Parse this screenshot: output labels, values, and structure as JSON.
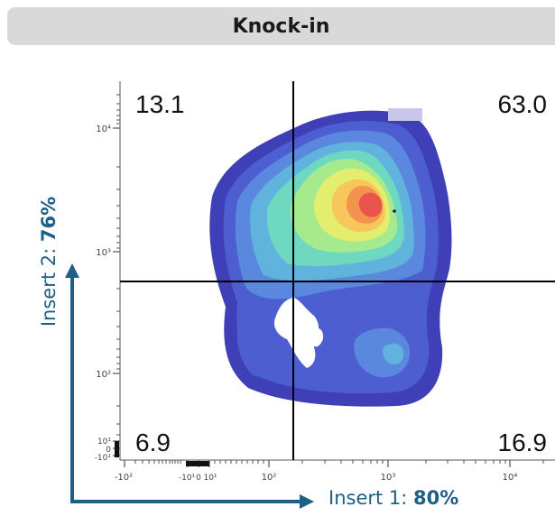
{
  "header": {
    "title": "Knock-in"
  },
  "axes": {
    "y_label_prefix": "Insert 2: ",
    "y_label_value": "76%",
    "x_label_prefix": "Insert 1: ",
    "x_label_value": "80%"
  },
  "chart_data": {
    "type": "heatmap",
    "title": "Knock-in",
    "xlabel": "Insert 1: 80%",
    "ylabel": "Insert 2: 76%",
    "x_scale": "biexponential",
    "y_scale": "biexponential",
    "x_ticks": [
      "-10²",
      "-10¹",
      "0",
      "10¹",
      "10²",
      "10³",
      "10⁴"
    ],
    "y_ticks": [
      "-10¹",
      "0",
      "10¹",
      "10²",
      "10³",
      "10⁴"
    ],
    "quadrants": [
      {
        "position": "top-left",
        "value": "13.1"
      },
      {
        "position": "top-right",
        "value": "63.0"
      },
      {
        "position": "bottom-left",
        "value": "6.9"
      },
      {
        "position": "bottom-right",
        "value": "16.9"
      }
    ],
    "gate_x": 150,
    "gate_y": 600,
    "colormap": [
      "#3f3fb8",
      "#4d5ed1",
      "#5b88df",
      "#5fb3dc",
      "#6fd8c0",
      "#a6ea8e",
      "#e2ee6c",
      "#f7c75b",
      "#f4934d",
      "#e9554a"
    ],
    "grid": false,
    "legend": "none"
  }
}
